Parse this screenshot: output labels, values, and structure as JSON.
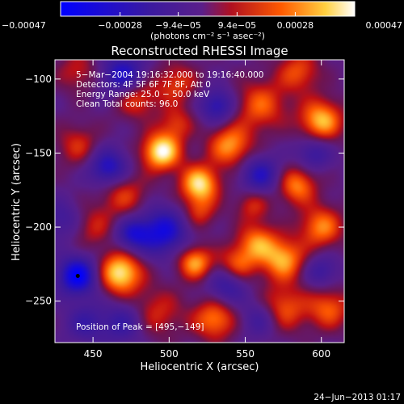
{
  "chart_data": {
    "type": "heatmap",
    "title": "Reconstructed RHESSI Image",
    "xlabel": "Heliocentric X (arcsec)",
    "ylabel": "Heliocentric Y (arcsec)",
    "xlim": [
      425,
      615
    ],
    "ylim": [
      -278,
      -87
    ],
    "x_ticks": [
      450,
      500,
      550,
      600
    ],
    "y_ticks": [
      -100,
      -150,
      -200,
      -250
    ],
    "x_tick_labels": [
      "450",
      "500",
      "550",
      "600"
    ],
    "y_tick_labels": [
      "−100",
      "−150",
      "−200",
      "−250"
    ],
    "colorbar": {
      "range": [
        -0.00047,
        0.00047
      ],
      "ticks": [
        -0.00047,
        -0.00028,
        -9.4e-05,
        9.4e-05,
        0.00028,
        0.00047
      ],
      "tick_labels": [
        "−0.00047",
        "−0.00028",
        "−9.4e−05",
        "9.4e−05",
        "0.00028",
        "0.00047"
      ],
      "unit_label": "(photons cm⁻² s⁻¹ asec⁻²)",
      "colors": [
        "#0000ff",
        "#3a1aa0",
        "#5a1f8a",
        "#b01020",
        "#ff5a00",
        "#ffd040",
        "#ffffff"
      ]
    },
    "annotations": [
      "5−Mar−2004 19:16:32.000 to 19:16:40.000",
      "Detectors: 4F 5F 6F 7F 8F, Att 0",
      "Energy Range: 25.0 − 50.0 keV",
      "Clean     Total counts: 96.0",
      "Position of Peak = [495,−149]"
    ],
    "peak_position": [
      495,
      -149
    ],
    "blobs": [
      {
        "x": 495,
        "y": -149,
        "v": 1.0,
        "s": 9
      },
      {
        "x": 520,
        "y": -171,
        "v": 0.9,
        "s": 9
      },
      {
        "x": 468,
        "y": -231,
        "v": 0.95,
        "s": 10
      },
      {
        "x": 517,
        "y": -224,
        "v": 0.75,
        "s": 8
      },
      {
        "x": 540,
        "y": -145,
        "v": 0.7,
        "s": 10
      },
      {
        "x": 478,
        "y": -112,
        "v": 0.55,
        "s": 10
      },
      {
        "x": 505,
        "y": -103,
        "v": 0.45,
        "s": 10
      },
      {
        "x": 560,
        "y": -118,
        "v": 0.55,
        "s": 12
      },
      {
        "x": 600,
        "y": -128,
        "v": 0.8,
        "s": 10
      },
      {
        "x": 584,
        "y": -172,
        "v": 0.65,
        "s": 9
      },
      {
        "x": 600,
        "y": -200,
        "v": 0.65,
        "s": 10
      },
      {
        "x": 575,
        "y": -222,
        "v": 0.75,
        "s": 10
      },
      {
        "x": 558,
        "y": -210,
        "v": 0.6,
        "s": 9
      },
      {
        "x": 545,
        "y": -225,
        "v": 0.55,
        "s": 9
      },
      {
        "x": 530,
        "y": -262,
        "v": 0.65,
        "s": 10
      },
      {
        "x": 575,
        "y": -255,
        "v": 0.55,
        "s": 11
      },
      {
        "x": 605,
        "y": -255,
        "v": 0.55,
        "s": 10
      },
      {
        "x": 470,
        "y": -178,
        "v": 0.45,
        "s": 11
      },
      {
        "x": 440,
        "y": -145,
        "v": 0.4,
        "s": 10
      },
      {
        "x": 450,
        "y": -200,
        "v": 0.35,
        "s": 10
      },
      {
        "x": 492,
        "y": -258,
        "v": 0.4,
        "s": 12
      },
      {
        "x": 520,
        "y": -190,
        "v": 0.4,
        "s": 8
      },
      {
        "x": 585,
        "y": -95,
        "v": 0.5,
        "s": 10
      },
      {
        "x": 440,
        "y": -95,
        "v": 0.35,
        "s": 10
      },
      {
        "x": 555,
        "y": -185,
        "v": 0.4,
        "s": 8
      },
      {
        "x": 505,
        "y": -130,
        "v": 0.4,
        "s": 8
      },
      {
        "x": 470,
        "y": -98,
        "v": -0.75,
        "s": 10
      },
      {
        "x": 460,
        "y": -160,
        "v": -0.7,
        "s": 9
      },
      {
        "x": 440,
        "y": -233,
        "v": -0.95,
        "s": 9
      },
      {
        "x": 496,
        "y": -203,
        "v": -0.75,
        "s": 11
      },
      {
        "x": 476,
        "y": -205,
        "v": -0.6,
        "s": 8
      },
      {
        "x": 532,
        "y": -118,
        "v": -0.6,
        "s": 8
      },
      {
        "x": 560,
        "y": -165,
        "v": -0.6,
        "s": 9
      },
      {
        "x": 538,
        "y": -240,
        "v": -0.5,
        "s": 9
      },
      {
        "x": 595,
        "y": -150,
        "v": -0.45,
        "s": 8
      },
      {
        "x": 470,
        "y": -265,
        "v": -0.45,
        "s": 10
      },
      {
        "x": 560,
        "y": -262,
        "v": -0.4,
        "s": 9
      },
      {
        "x": 600,
        "y": -230,
        "v": -0.4,
        "s": 8
      },
      {
        "x": 445,
        "y": -265,
        "v": -0.4,
        "s": 9
      },
      {
        "x": 430,
        "y": -195,
        "v": -0.35,
        "s": 9
      }
    ]
  },
  "footer": {
    "date": "24−Jun−2013 01:17"
  }
}
